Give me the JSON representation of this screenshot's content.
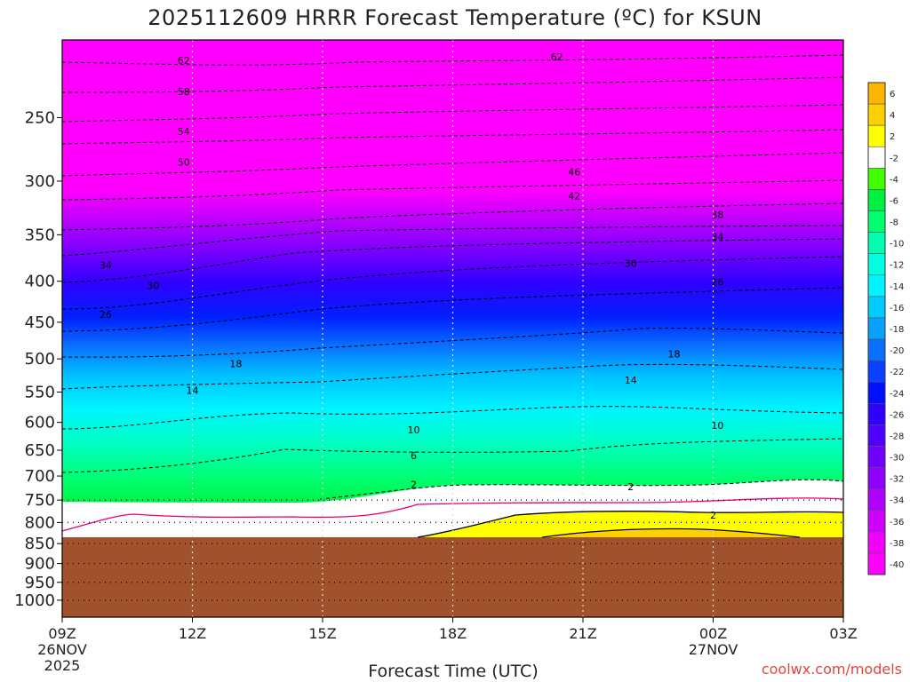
{
  "chart_data": {
    "type": "contour",
    "title": "2025112609 HRRR Forecast Temperature (ºC) for KSUN",
    "xlabel": "Forecast Time (UTC)",
    "ylabel": "",
    "x_ticks": [
      {
        "label": "09Z",
        "sub1": "26NOV",
        "sub2": "2025",
        "hour": 0
      },
      {
        "label": "12Z",
        "hour": 3
      },
      {
        "label": "15Z",
        "hour": 6
      },
      {
        "label": "18Z",
        "hour": 9
      },
      {
        "label": "21Z",
        "hour": 12
      },
      {
        "label": "00Z",
        "sub1": "27NOV",
        "hour": 15
      },
      {
        "label": "03Z",
        "hour": 18
      }
    ],
    "xlim": [
      0,
      18
    ],
    "y_scale": "log",
    "ylim": [
      1050,
      200
    ],
    "y_ticks": [
      250,
      300,
      350,
      400,
      450,
      500,
      550,
      600,
      650,
      700,
      750,
      800,
      850,
      900,
      950,
      1000
    ],
    "terrain_top_hpa": 840,
    "colorbar": {
      "levels": [
        6,
        4,
        2,
        -2,
        -4,
        -6,
        -8,
        -10,
        -12,
        -14,
        -16,
        -18,
        -20,
        -22,
        -24,
        -26,
        -28,
        -30,
        -32,
        -34,
        -36,
        -38,
        -40
      ],
      "colors": [
        "#ffb400",
        "#ffd000",
        "#ffff00",
        "#ffffff",
        "#40ff00",
        "#00f040",
        "#00ff70",
        "#00ffb0",
        "#00ffe0",
        "#00f4ff",
        "#00caff",
        "#0aa0ff",
        "#0a70ff",
        "#0a40ff",
        "#0010ff",
        "#3000ff",
        "#5000ff",
        "#7000ff",
        "#9000ff",
        "#b000ff",
        "#d000ff",
        "#f000ff",
        "#ff00ff"
      ]
    },
    "contour_labels": [
      {
        "text": "62",
        "hour": 2.8,
        "hpa": 212
      },
      {
        "text": "62",
        "hour": 11.4,
        "hpa": 210
      },
      {
        "text": "58",
        "hour": 2.8,
        "hpa": 232
      },
      {
        "text": "54",
        "hour": 2.8,
        "hpa": 260
      },
      {
        "text": "50",
        "hour": 2.8,
        "hpa": 284
      },
      {
        "text": "46",
        "hour": 11.8,
        "hpa": 292
      },
      {
        "text": "42",
        "hour": 11.8,
        "hpa": 313
      },
      {
        "text": "38",
        "hour": 15.1,
        "hpa": 330
      },
      {
        "text": "34",
        "hour": 1.0,
        "hpa": 382
      },
      {
        "text": "34",
        "hour": 15.1,
        "hpa": 352
      },
      {
        "text": "30",
        "hour": 2.1,
        "hpa": 405
      },
      {
        "text": "30",
        "hour": 13.1,
        "hpa": 380
      },
      {
        "text": "26",
        "hour": 1.0,
        "hpa": 440
      },
      {
        "text": "26",
        "hour": 15.1,
        "hpa": 401
      },
      {
        "text": "18",
        "hour": 4.0,
        "hpa": 507
      },
      {
        "text": "18",
        "hour": 14.1,
        "hpa": 493
      },
      {
        "text": "14",
        "hour": 3.0,
        "hpa": 547
      },
      {
        "text": "14",
        "hour": 13.1,
        "hpa": 531
      },
      {
        "text": "10",
        "hour": 8.1,
        "hpa": 613
      },
      {
        "text": "10",
        "hour": 15.1,
        "hpa": 605
      },
      {
        "text": "6",
        "hour": 8.1,
        "hpa": 660
      },
      {
        "text": "2",
        "hour": 8.1,
        "hpa": 717
      },
      {
        "text": "2",
        "hour": 13.1,
        "hpa": 722
      },
      {
        "text": "2",
        "hour": 15.0,
        "hpa": 783
      }
    ]
  },
  "credit": "coolwx.com/models"
}
